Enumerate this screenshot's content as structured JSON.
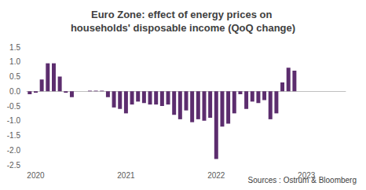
{
  "chart_data": {
    "type": "bar",
    "title": "Euro Zone: effect of energy prices on households' disposable income (QoQ change)",
    "annotations": [
      "Sources : Ostrum & Bloomberg"
    ],
    "categories": [
      null,
      "2020",
      null,
      null,
      null,
      null,
      null,
      null,
      null,
      null,
      null,
      null,
      null,
      null,
      null,
      null,
      "2021",
      null,
      null,
      null,
      null,
      null,
      null,
      null,
      null,
      null,
      null,
      null,
      null,
      null,
      null,
      "2022",
      null,
      null,
      null,
      null,
      null,
      null,
      null,
      null,
      null,
      null,
      null,
      null,
      null,
      null,
      "2023",
      null,
      null,
      null,
      null,
      null,
      null
    ],
    "values": [
      -0.1,
      -0.05,
      0.4,
      0.95,
      0.95,
      0.5,
      -0.05,
      -0.2,
      0,
      0,
      0.02,
      0.02,
      0.02,
      -0.2,
      -0.55,
      -0.6,
      -0.75,
      -0.45,
      -0.35,
      -0.4,
      -0.45,
      -0.45,
      -0.5,
      -0.45,
      -0.8,
      -0.95,
      -0.65,
      -1.05,
      -0.95,
      -1.0,
      -0.9,
      -2.3,
      -1.2,
      -1.1,
      -0.75,
      -0.1,
      -0.6,
      -0.35,
      -0.4,
      -0.3,
      -0.95,
      -0.75,
      0.3,
      0.8,
      0.7,
      null,
      null,
      null,
      null,
      null,
      null,
      null,
      null
    ],
    "color": "#5c2d6e",
    "ylim": [
      -2.5,
      1.5
    ],
    "yticks": [
      -2.5,
      {
        "value": -2,
        "label": "-2.0"
      },
      -1.5,
      {
        "value": -1,
        "label": "-1.0"
      },
      -0.5,
      {
        "value": 0,
        "label": "0.0"
      },
      0.5,
      {
        "value": 1,
        "label": "1.0"
      },
      1.5
    ],
    "grid": false
  }
}
